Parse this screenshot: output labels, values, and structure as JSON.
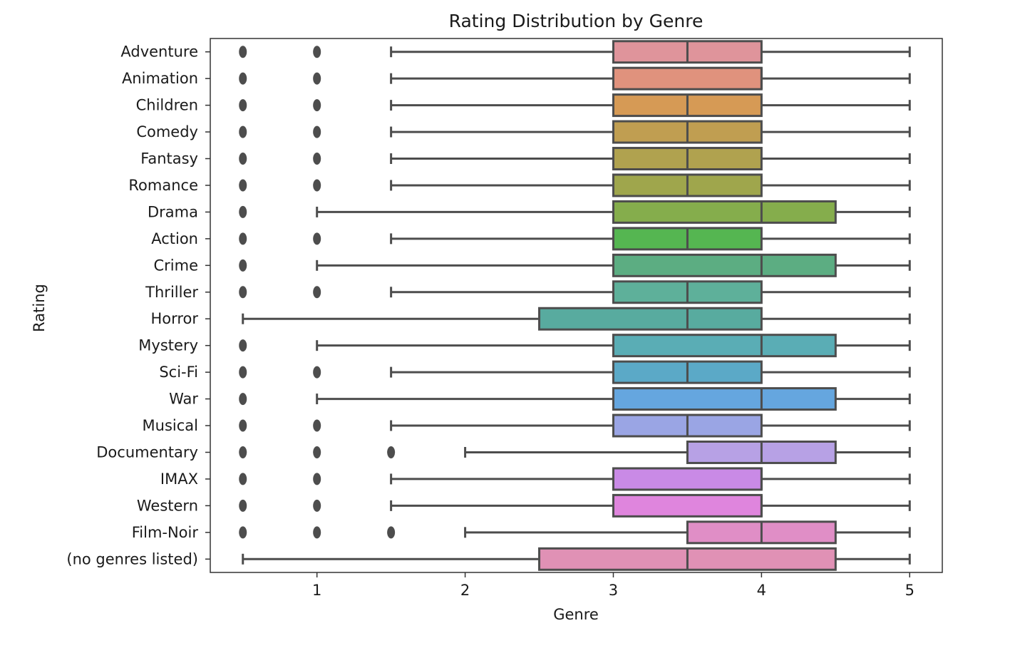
{
  "chart_data": {
    "type": "boxplot",
    "orientation": "horizontal",
    "title": "Rating Distribution by Genre",
    "xlabel": "Genre",
    "ylabel": "Rating",
    "xlim": [
      0.28,
      5.22
    ],
    "xticks": [
      1,
      2,
      3,
      4,
      5
    ],
    "grid": false,
    "categories": [
      "Adventure",
      "Animation",
      "Children",
      "Comedy",
      "Fantasy",
      "Romance",
      "Drama",
      "Action",
      "Crime",
      "Thriller",
      "Horror",
      "Mystery",
      "Sci-Fi",
      "War",
      "Musical",
      "Documentary",
      "IMAX",
      "Western",
      "Film-Noir",
      "(no genres listed)"
    ],
    "colors": [
      "#df949b",
      "#e0927d",
      "#d69a55",
      "#c09e51",
      "#b0a24f",
      "#9fa64c",
      "#85ad4c",
      "#55b651",
      "#5cad82",
      "#5eb09a",
      "#58ab9f",
      "#5aadb5",
      "#5ba9c7",
      "#65a6df",
      "#9aa5e4",
      "#b7a1e5",
      "#c98ae6",
      "#df85dd",
      "#e08ec6",
      "#e091b5"
    ],
    "boxes": [
      {
        "q1": 3,
        "median": 3.5,
        "q3": 4,
        "whislo": 1.5,
        "whishi": 5,
        "fliers": [
          0.5,
          1
        ]
      },
      {
        "q1": 3,
        "median": 4,
        "q3": 4,
        "whislo": 1.5,
        "whishi": 5,
        "fliers": [
          0.5,
          1
        ]
      },
      {
        "q1": 3,
        "median": 3.5,
        "q3": 4,
        "whislo": 1.5,
        "whishi": 5,
        "fliers": [
          0.5,
          1
        ]
      },
      {
        "q1": 3,
        "median": 3.5,
        "q3": 4,
        "whislo": 1.5,
        "whishi": 5,
        "fliers": [
          0.5,
          1
        ]
      },
      {
        "q1": 3,
        "median": 3.5,
        "q3": 4,
        "whislo": 1.5,
        "whishi": 5,
        "fliers": [
          0.5,
          1
        ]
      },
      {
        "q1": 3,
        "median": 3.5,
        "q3": 4,
        "whislo": 1.5,
        "whishi": 5,
        "fliers": [
          0.5,
          1
        ]
      },
      {
        "q1": 3,
        "median": 4,
        "q3": 4.5,
        "whislo": 1,
        "whishi": 5,
        "fliers": [
          0.5
        ]
      },
      {
        "q1": 3,
        "median": 3.5,
        "q3": 4,
        "whislo": 1.5,
        "whishi": 5,
        "fliers": [
          0.5,
          1
        ]
      },
      {
        "q1": 3,
        "median": 4,
        "q3": 4.5,
        "whislo": 1,
        "whishi": 5,
        "fliers": [
          0.5
        ]
      },
      {
        "q1": 3,
        "median": 3.5,
        "q3": 4,
        "whislo": 1.5,
        "whishi": 5,
        "fliers": [
          0.5,
          1
        ]
      },
      {
        "q1": 2.5,
        "median": 3.5,
        "q3": 4,
        "whislo": 0.5,
        "whishi": 5,
        "fliers": []
      },
      {
        "q1": 3,
        "median": 4,
        "q3": 4.5,
        "whislo": 1,
        "whishi": 5,
        "fliers": [
          0.5
        ]
      },
      {
        "q1": 3,
        "median": 3.5,
        "q3": 4,
        "whislo": 1.5,
        "whishi": 5,
        "fliers": [
          0.5,
          1
        ]
      },
      {
        "q1": 3,
        "median": 4,
        "q3": 4.5,
        "whislo": 1,
        "whishi": 5,
        "fliers": [
          0.5
        ]
      },
      {
        "q1": 3,
        "median": 3.5,
        "q3": 4,
        "whislo": 1.5,
        "whishi": 5,
        "fliers": [
          0.5,
          1
        ]
      },
      {
        "q1": 3.5,
        "median": 4,
        "q3": 4.5,
        "whislo": 2,
        "whishi": 5,
        "fliers": [
          0.5,
          1,
          1.5
        ]
      },
      {
        "q1": 3,
        "median": 4,
        "q3": 4,
        "whislo": 1.5,
        "whishi": 5,
        "fliers": [
          0.5,
          1
        ]
      },
      {
        "q1": 3,
        "median": 4,
        "q3": 4,
        "whislo": 1.5,
        "whishi": 5,
        "fliers": [
          0.5,
          1
        ]
      },
      {
        "q1": 3.5,
        "median": 4,
        "q3": 4.5,
        "whislo": 2,
        "whishi": 5,
        "fliers": [
          0.5,
          1,
          1.5
        ]
      },
      {
        "q1": 2.5,
        "median": 3.5,
        "q3": 4.5,
        "whislo": 0.5,
        "whishi": 5,
        "fliers": []
      }
    ]
  }
}
